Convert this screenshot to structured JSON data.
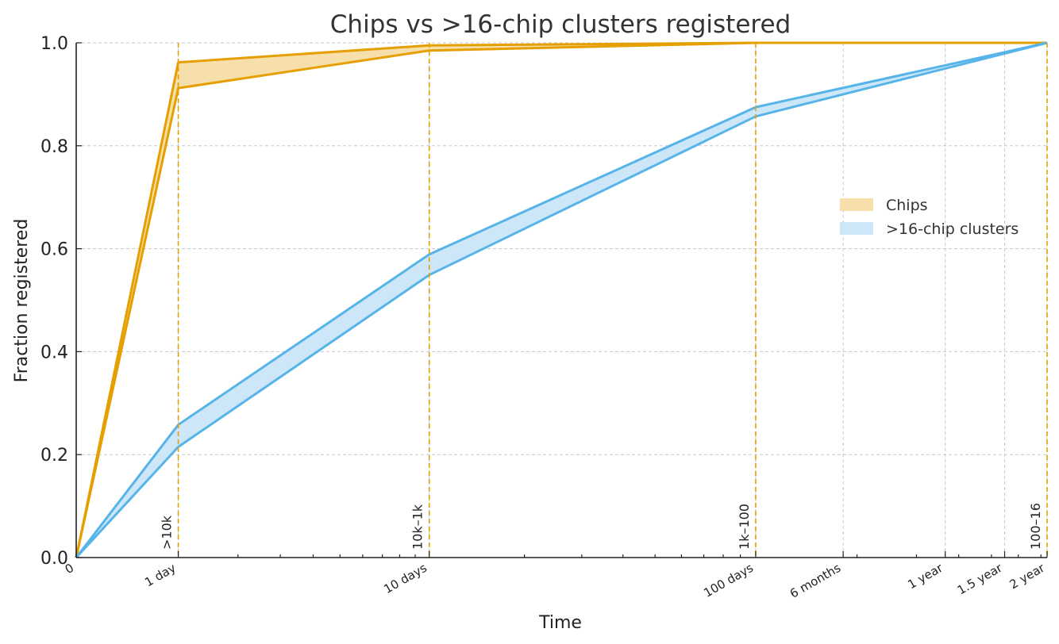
{
  "chart_data": {
    "type": "area",
    "title": "Chips vs >16-chip clusters registered",
    "xlabel": "Time",
    "ylabel": "Fraction registered",
    "x_scale": "log1p-days",
    "xlim_days": [
      0,
      730
    ],
    "ylim": [
      0,
      1
    ],
    "grid": true,
    "legend_position": "center-right",
    "x_ticks": [
      {
        "days": 0,
        "label": "0"
      },
      {
        "days": 1,
        "label": "1 day"
      },
      {
        "days": 10,
        "label": "10 days"
      },
      {
        "days": 100,
        "label": "100 days"
      },
      {
        "days": 182,
        "label": "6 months"
      },
      {
        "days": 365,
        "label": "1 year"
      },
      {
        "days": 547,
        "label": "1.5 year"
      },
      {
        "days": 730,
        "label": "2 year"
      }
    ],
    "y_ticks": [
      {
        "value": 0.0,
        "label": "0.0"
      },
      {
        "value": 0.2,
        "label": "0.2"
      },
      {
        "value": 0.4,
        "label": "0.4"
      },
      {
        "value": 0.6,
        "label": "0.6"
      },
      {
        "value": 0.8,
        "label": "0.8"
      },
      {
        "value": 1.0,
        "label": "1.0"
      }
    ],
    "series": [
      {
        "name": "Chips",
        "color": "#e69f00",
        "fill": "#f6dfab",
        "x_days": [
          0,
          1,
          10,
          100,
          730
        ],
        "upper": [
          0.0,
          0.962,
          0.995,
          1.0,
          1.0
        ],
        "lower": [
          0.0,
          0.912,
          0.985,
          1.0,
          1.0
        ]
      },
      {
        "name": ">16-chip clusters",
        "color": "#56b4e9",
        "fill": "#cde7f8",
        "x_days": [
          0,
          1,
          10,
          100,
          730
        ],
        "upper": [
          0.0,
          0.258,
          0.589,
          0.875,
          1.0
        ],
        "lower": [
          0.0,
          0.215,
          0.549,
          0.857,
          1.0
        ]
      }
    ],
    "vlines": [
      {
        "days": 1,
        "label": ">10k"
      },
      {
        "days": 10,
        "label": "10k–1k"
      },
      {
        "days": 100,
        "label": "1k–100"
      },
      {
        "days": 730,
        "label": "100–16"
      }
    ],
    "vline_color": "#e69f00"
  }
}
